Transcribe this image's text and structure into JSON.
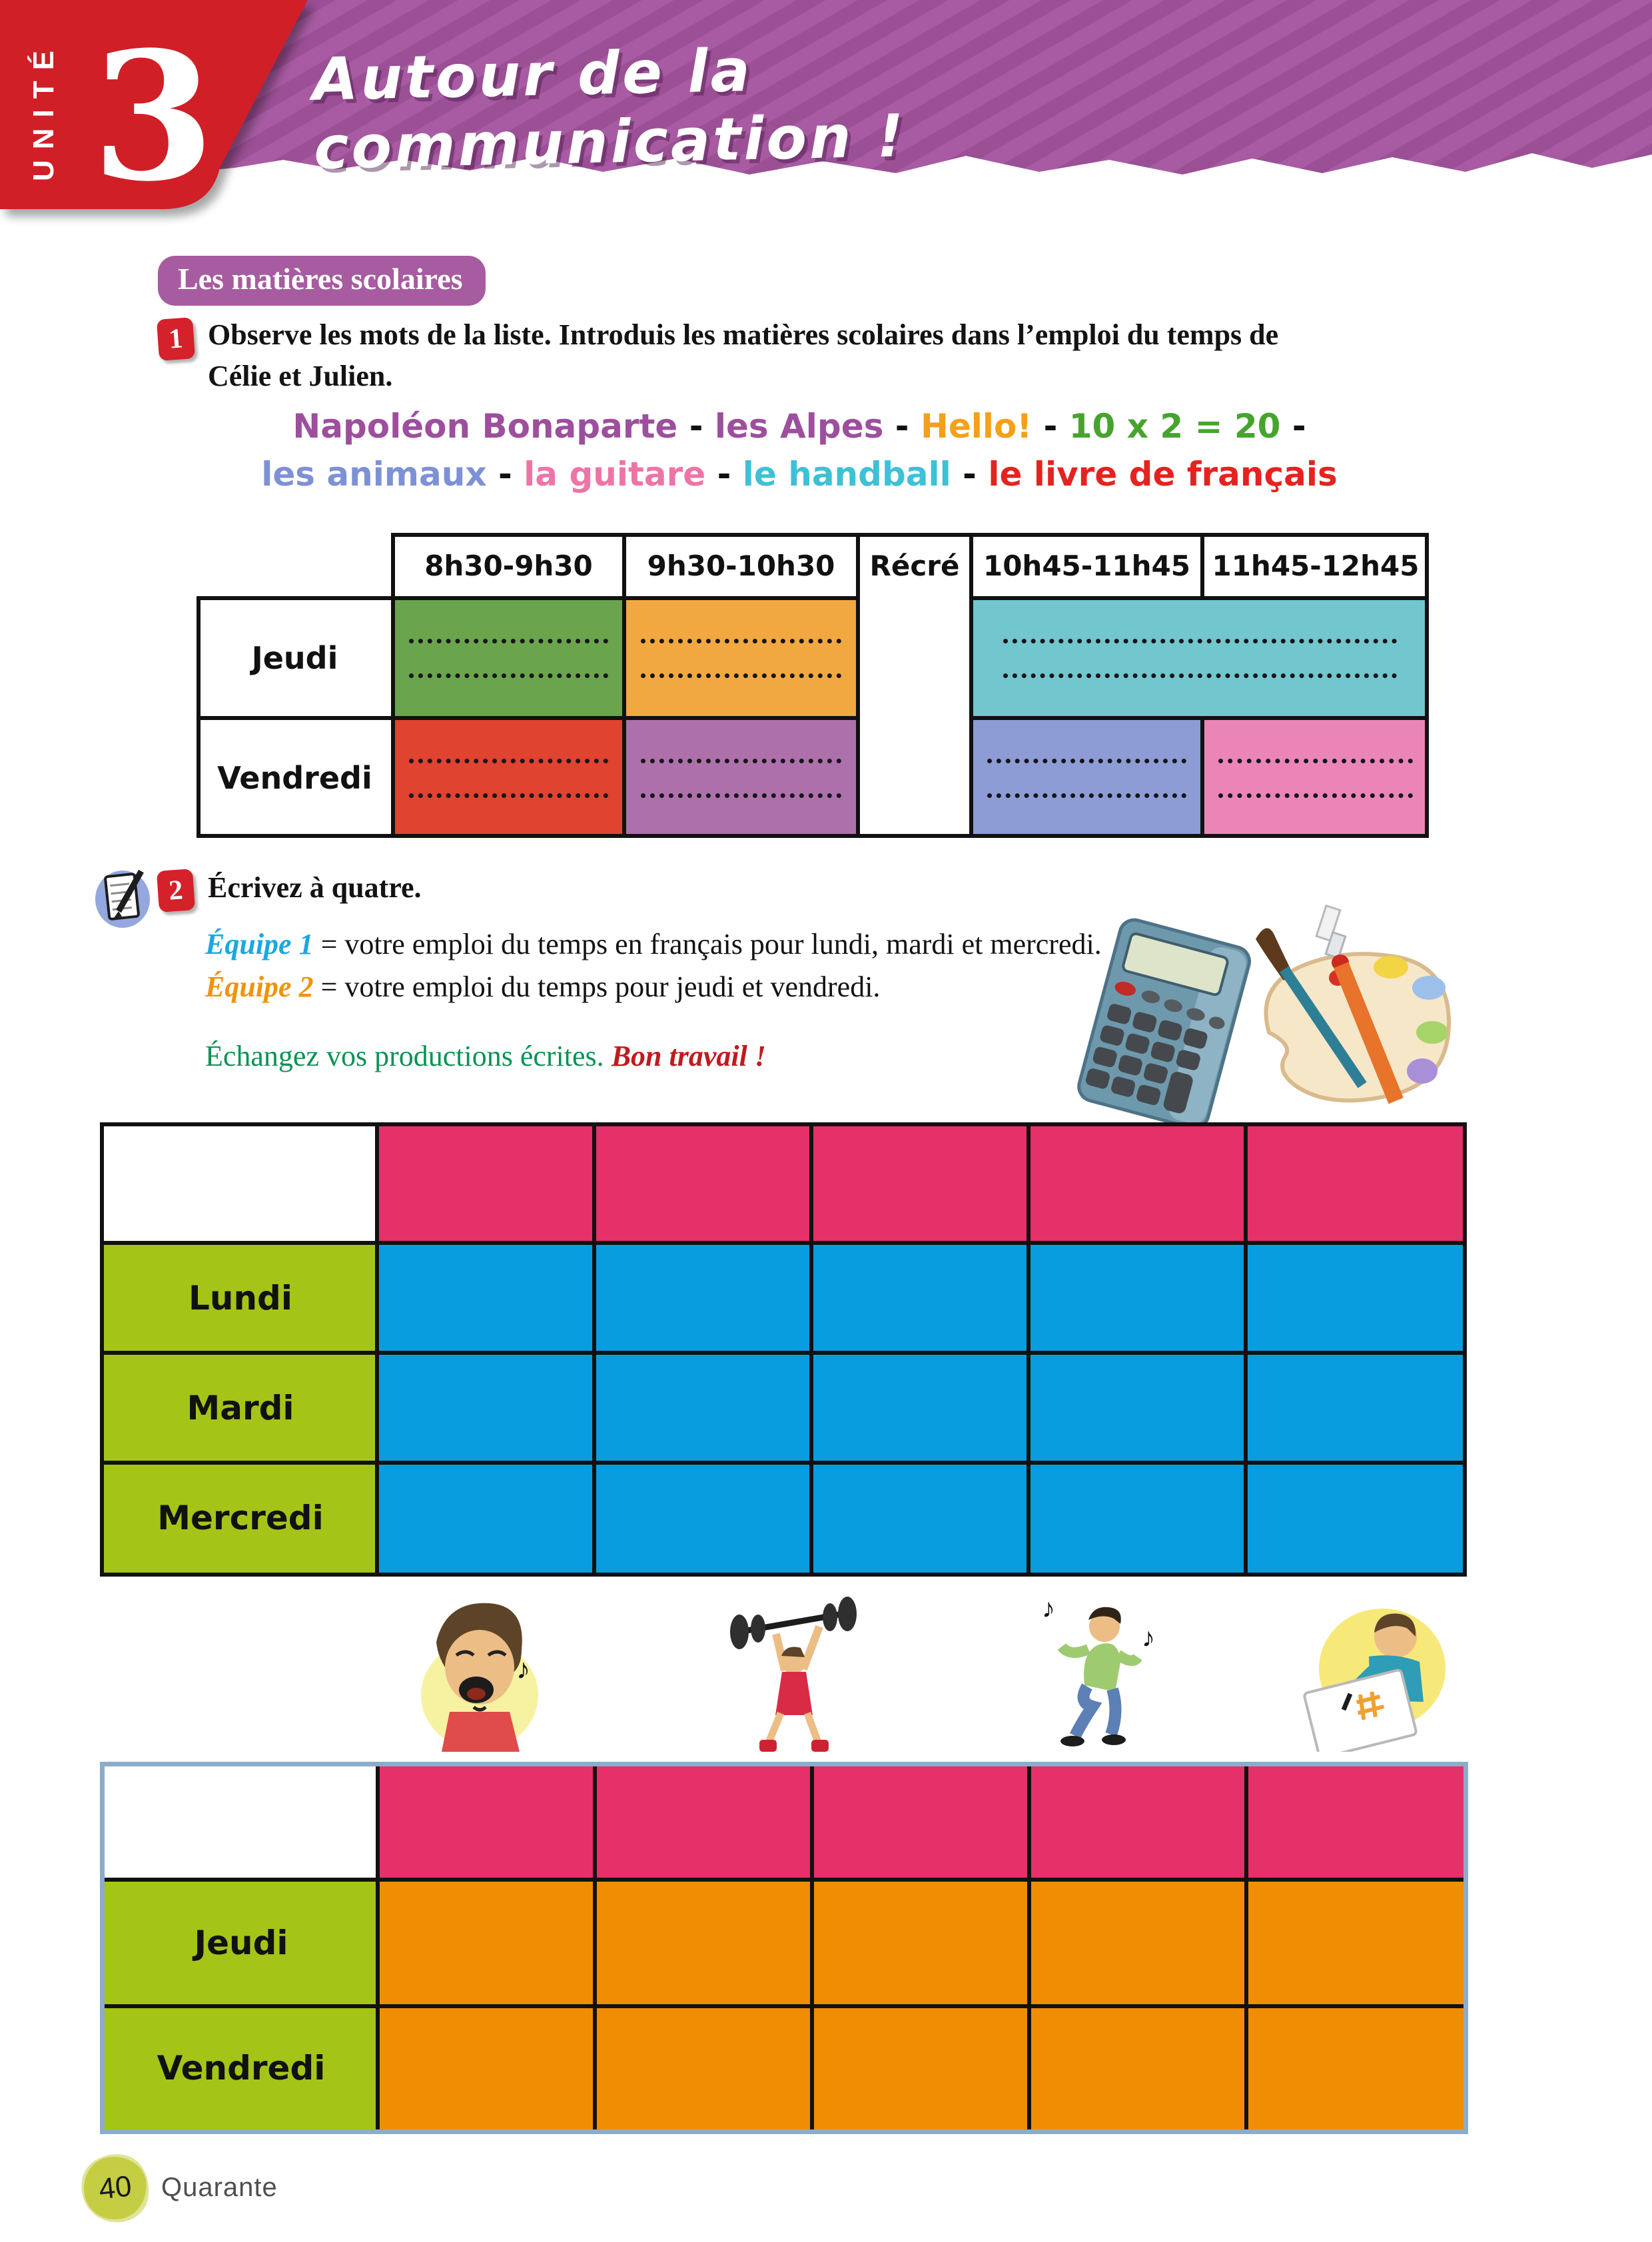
{
  "page": {
    "number": "40",
    "number_word": "Quarante"
  },
  "glyphs": {
    "music_note": "♪"
  },
  "header": {
    "unit_label": "UNITÉ",
    "unit_number": "3",
    "title": "Autour de la communication !",
    "banner_color": "#a85ba2",
    "banner_stripe_color": "#9b4f95",
    "unit_badge_color": "#d01f27"
  },
  "section": {
    "label": "Les matières scolaires",
    "pill_color": "#a75ba0"
  },
  "exercise1": {
    "number": "1",
    "instruction_line1": "Observe les mots de la liste. Introduis les matières scolaires dans l’emploi du temps de",
    "instruction_line2": "Célie et Julien.",
    "separator": "-",
    "word_list": [
      {
        "text": "Napoléon Bonaparte",
        "color": "#9d4f9d"
      },
      {
        "text": "les Alpes",
        "color": "#9d4f9d"
      },
      {
        "text": "Hello!",
        "color": "#f4a01b"
      },
      {
        "text": "10 x 2 = 20",
        "color": "#46a42e"
      },
      {
        "text": "les animaux",
        "color": "#7e91d6"
      },
      {
        "text": "la guitare",
        "color": "#ee74a8"
      },
      {
        "text": "le handball",
        "color": "#3ec1d6"
      },
      {
        "text": "le livre de français",
        "color": "#e42320"
      }
    ],
    "words_per_line": 4,
    "timetable": {
      "headers": [
        "8h30-9h30",
        "9h30-10h30",
        "Récré",
        "10h45-11h45",
        "11h45-12h45"
      ],
      "rows": [
        {
          "label": "Jeudi",
          "cells": [
            {
              "slot": 0,
              "color": "#6aa44c",
              "span": 1
            },
            {
              "slot": 1,
              "color": "#f2a840",
              "span": 1
            },
            {
              "slot": 2,
              "color": "#72c6cd",
              "span": 2
            }
          ]
        },
        {
          "label": "Vendredi",
          "cells": [
            {
              "slot": 0,
              "color": "#e0432f",
              "span": 1
            },
            {
              "slot": 1,
              "color": "#ae70aa",
              "span": 1
            },
            {
              "slot": 2,
              "color": "#8d9cd4",
              "span": 1
            },
            {
              "slot": 3,
              "color": "#eb85b8",
              "span": 1
            }
          ]
        }
      ]
    }
  },
  "exercise2": {
    "number": "2",
    "title": "Écrivez à quatre.",
    "team1_label": "Équipe 1",
    "team1_text": " = votre emploi du temps en français pour lundi, mardi et mercredi.",
    "team2_label": "Équipe 2",
    "team2_text": " = votre emploi du temps pour jeudi et vendredi.",
    "team1_color": "#1ba8e0",
    "team2_color": "#f0930c",
    "exchange_text": "Échangez vos productions écrites. ",
    "exchange_highlight": "Bon travail !",
    "exchange_color": "#0b9255",
    "exchange_highlight_color": "#c01a20",
    "week_table1": {
      "row_labels": [
        "Lundi",
        "Mardi",
        "Mercredi"
      ],
      "columns": 5,
      "header_color": "#e5306a",
      "label_color": "#a4c517",
      "cell_color": "#089ddf"
    },
    "week_table2": {
      "row_labels": [
        "Jeudi",
        "Vendredi"
      ],
      "columns": 5,
      "header_color": "#e5306a",
      "label_color": "#a4c517",
      "cell_color": "#f08d03"
    }
  },
  "illustration_names": [
    "notepad-pencil-icon",
    "calculator-icon",
    "paint-palette-icon",
    "singing-boy-illustration",
    "weightlifting-boy-illustration",
    "dancing-boy-illustration",
    "writing-boy-illustration"
  ]
}
